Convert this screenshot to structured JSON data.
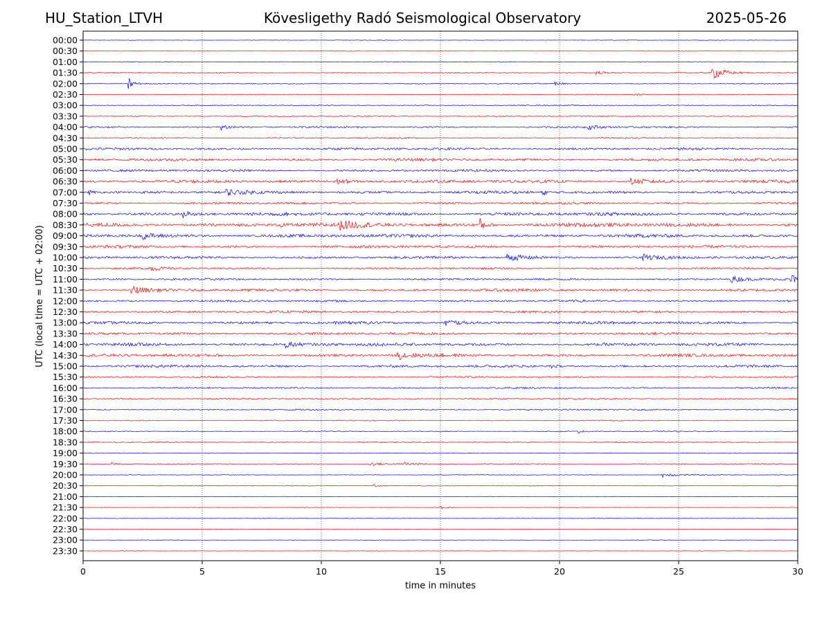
{
  "header": {
    "station": "HU_Station_LTVH",
    "title": "Kövesligethy Radó Seismological Observatory",
    "date": "2025-05-26"
  },
  "chart_data": {
    "type": "line",
    "xlabel": "time in minutes",
    "ylabel": "UTC (local time = UTC + 02:00)",
    "xlim": [
      0,
      30
    ],
    "x_ticks": [
      0,
      5,
      10,
      15,
      20,
      25,
      30
    ],
    "vertical_grid": "dotted at every x tick",
    "row_labels": [
      "00:00",
      "00:30",
      "01:00",
      "01:30",
      "02:00",
      "02:30",
      "03:00",
      "03:30",
      "04:00",
      "04:30",
      "05:00",
      "05:30",
      "06:00",
      "06:30",
      "07:00",
      "07:30",
      "08:00",
      "08:30",
      "09:00",
      "09:30",
      "10:00",
      "10:30",
      "11:00",
      "11:30",
      "12:00",
      "12:30",
      "13:00",
      "13:30",
      "14:00",
      "14:30",
      "15:00",
      "15:30",
      "16:00",
      "16:30",
      "17:00",
      "17:30",
      "18:00",
      "18:30",
      "19:00",
      "19:30",
      "20:00",
      "20:30",
      "21:00",
      "21:30",
      "22:00",
      "22:30",
      "23:00",
      "23:30"
    ],
    "row_colors": [
      "#0000ff",
      "#ff0000"
    ],
    "row_noise": [
      0.3,
      0.35,
      0.5,
      0.6,
      0.6,
      0.5,
      0.55,
      0.6,
      1.0,
      0.8,
      1.4,
      1.6,
      1.4,
      1.8,
      1.7,
      1.3,
      2.0,
      2.3,
      1.9,
      1.6,
      1.5,
      1.1,
      1.2,
      1.6,
      1.3,
      1.4,
      1.7,
      1.5,
      1.8,
      1.7,
      1.5,
      1.0,
      0.9,
      0.8,
      0.8,
      0.6,
      0.6,
      0.6,
      0.4,
      0.6,
      0.4,
      0.4,
      0.3,
      0.3,
      0.3,
      0.3,
      0.3,
      0.3
    ],
    "events": [
      {
        "row": 3,
        "minute": 26.4,
        "amplitude": 10,
        "duration": 1.0
      },
      {
        "row": 3,
        "minute": 21.5,
        "amplitude": 2.5,
        "duration": 1.0
      },
      {
        "row": 4,
        "minute": 1.9,
        "amplitude": 10,
        "duration": 0.4
      },
      {
        "row": 4,
        "minute": 19.8,
        "amplitude": 3,
        "duration": 0.5
      },
      {
        "row": 5,
        "minute": 23.1,
        "amplitude": 2,
        "duration": 0.8
      },
      {
        "row": 8,
        "minute": 5.8,
        "amplitude": 4,
        "duration": 1.0
      },
      {
        "row": 8,
        "minute": 21.2,
        "amplitude": 3,
        "duration": 1.0
      },
      {
        "row": 13,
        "minute": 10.5,
        "amplitude": 4,
        "duration": 1.5
      },
      {
        "row": 13,
        "minute": 23.0,
        "amplitude": 4,
        "duration": 1.5
      },
      {
        "row": 14,
        "minute": 0.2,
        "amplitude": 5,
        "duration": 0.4
      },
      {
        "row": 14,
        "minute": 6.0,
        "amplitude": 4,
        "duration": 1.0
      },
      {
        "row": 14,
        "minute": 19.3,
        "amplitude": 6,
        "duration": 0.2
      },
      {
        "row": 16,
        "minute": 4.2,
        "amplitude": 5,
        "duration": 1.0
      },
      {
        "row": 17,
        "minute": 10.8,
        "amplitude": 5,
        "duration": 1.5
      },
      {
        "row": 17,
        "minute": 16.6,
        "amplitude": 12,
        "duration": 0.4
      },
      {
        "row": 17,
        "minute": 8.3,
        "amplitude": 3,
        "duration": 0.3
      },
      {
        "row": 18,
        "minute": 2.5,
        "amplitude": 4,
        "duration": 1.0
      },
      {
        "row": 20,
        "minute": 17.8,
        "amplitude": 5,
        "duration": 1.5
      },
      {
        "row": 20,
        "minute": 23.5,
        "amplitude": 4,
        "duration": 1.0
      },
      {
        "row": 21,
        "minute": 2.8,
        "amplitude": 4,
        "duration": 0.8
      },
      {
        "row": 22,
        "minute": 27.2,
        "amplitude": 5,
        "duration": 1.0
      },
      {
        "row": 22,
        "minute": 29.7,
        "amplitude": 7,
        "duration": 0.5
      },
      {
        "row": 23,
        "minute": 2.0,
        "amplitude": 7,
        "duration": 1.0
      },
      {
        "row": 26,
        "minute": 15.2,
        "amplitude": 5,
        "duration": 1.0
      },
      {
        "row": 28,
        "minute": 8.5,
        "amplitude": 4,
        "duration": 1.5
      },
      {
        "row": 29,
        "minute": 13.2,
        "amplitude": 6,
        "duration": 1.0
      },
      {
        "row": 30,
        "minute": 19.6,
        "amplitude": 4,
        "duration": 0.5
      },
      {
        "row": 36,
        "minute": 20.8,
        "amplitude": 2,
        "duration": 0.4
      },
      {
        "row": 39,
        "minute": 1.2,
        "amplitude": 3,
        "duration": 0.3
      },
      {
        "row": 39,
        "minute": 12.0,
        "amplitude": 3,
        "duration": 1.0
      },
      {
        "row": 39,
        "minute": 13.5,
        "amplitude": 3,
        "duration": 0.8
      },
      {
        "row": 40,
        "minute": 24.3,
        "amplitude": 4,
        "duration": 1.2
      },
      {
        "row": 41,
        "minute": 12.2,
        "amplitude": 2,
        "duration": 0.6
      },
      {
        "row": 43,
        "minute": 15.0,
        "amplitude": 2,
        "duration": 0.5
      }
    ]
  }
}
